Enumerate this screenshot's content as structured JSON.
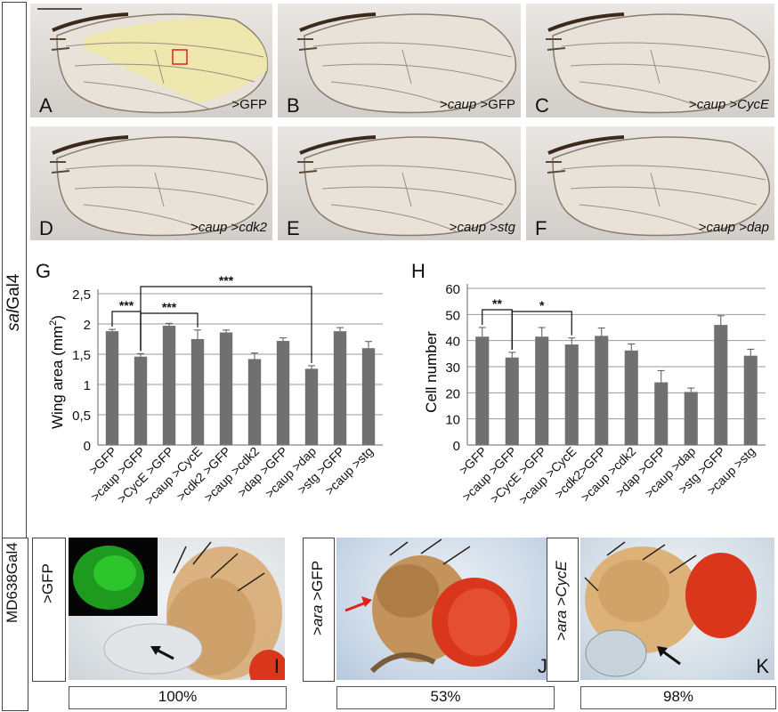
{
  "side_label_sal": "salGal4",
  "side_label_md": "MD638Gal4",
  "wing_panels": [
    {
      "letter": "A",
      "genotype": ">GFP"
    },
    {
      "letter": "B",
      "genotype": ">caup >GFP"
    },
    {
      "letter": "C",
      "genotype": ">caup >CycE"
    },
    {
      "letter": "D",
      "genotype": ">caup >cdk2"
    },
    {
      "letter": "E",
      "genotype": ">caup >stg"
    },
    {
      "letter": "F",
      "genotype": ">caup >dap"
    }
  ],
  "fly_panels": [
    {
      "letter": "I",
      "genotype": ">GFP",
      "percent": "100%"
    },
    {
      "letter": "J",
      "genotype": ">ara >GFP",
      "percent": "53%"
    },
    {
      "letter": "K",
      "genotype": ">ara >CycE",
      "percent": "98%"
    }
  ],
  "colors": {
    "bar": "#707070",
    "wing_highlight": "#efe7a6",
    "box_red": "#e0221b",
    "gfp": "#22b822",
    "eye_red": "#d9361b"
  },
  "chart_data": [
    {
      "panel": "G",
      "type": "bar",
      "ylabel": "Wing area (mm2)",
      "ylabel_main": "Wing area (mm",
      "ylabel_sup": "2",
      "ylabel_tail": ")",
      "ylim": [
        0,
        2.5
      ],
      "yticks": [
        "0",
        "0,5",
        "1",
        "1,5",
        "2",
        "2,5"
      ],
      "categories": [
        ">GFP",
        ">caup >GFP",
        ">CycE >GFP",
        ">caup >CycE",
        ">cdk2 >GFP",
        ">caup >cdk2",
        ">dap >GFP",
        ">caup >dap",
        ">stg >GFP",
        ">caup >stg"
      ],
      "values": [
        1.88,
        1.46,
        1.97,
        1.75,
        1.86,
        1.42,
        1.72,
        1.26,
        1.88,
        1.6
      ],
      "errors": [
        0.03,
        0.05,
        0.04,
        0.15,
        0.04,
        0.1,
        0.05,
        0.05,
        0.06,
        0.11
      ],
      "significance": [
        {
          "from": 0,
          "to": 1,
          "label": "***"
        },
        {
          "from": 1,
          "to": 3,
          "label": "***"
        },
        {
          "from": 1,
          "to": 7,
          "label": "***"
        }
      ],
      "grid": true
    },
    {
      "panel": "H",
      "type": "bar",
      "ylabel": "Cell number",
      "ylim": [
        0,
        60
      ],
      "yticks": [
        "0",
        "10",
        "20",
        "30",
        "40",
        "50",
        "60"
      ],
      "categories": [
        ">GFP",
        ">caup >GFP",
        ">CycE >GFP",
        ">caup >CycE",
        ">cdk2>GFP",
        ">caup >cdk2",
        ">dap >GFP",
        ">caup >dap",
        ">stg >GFP",
        ">caup >stg"
      ],
      "values": [
        41.5,
        33.5,
        41.5,
        38.5,
        41.8,
        36.2,
        24,
        20.3,
        46,
        34.2
      ],
      "errors": [
        3.5,
        2,
        3.5,
        2.5,
        3,
        2.5,
        4.5,
        1.5,
        3.5,
        2.5
      ],
      "significance": [
        {
          "from": 0,
          "to": 1,
          "label": "**"
        },
        {
          "from": 1,
          "to": 3,
          "label": "*"
        }
      ],
      "grid": true
    }
  ]
}
